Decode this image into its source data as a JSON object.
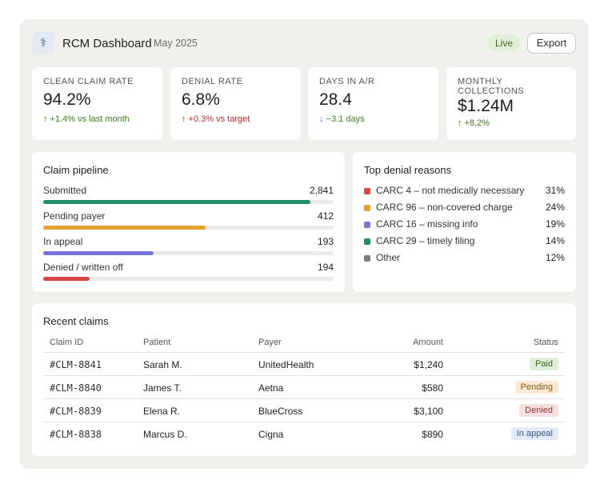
{
  "header": {
    "logo_icon": "⚕",
    "title": "RCM Dashboard",
    "period": "May 2025",
    "live_label": "Live",
    "export_label": "Export"
  },
  "kpis": [
    {
      "label": "CLEAN CLAIM RATE",
      "value": "94.2%",
      "delta": "↑ +1.4% vs last month",
      "tone": "good"
    },
    {
      "label": "DENIAL RATE",
      "value": "6.8%",
      "delta": "↑ +0.3% vs target",
      "tone": "bad"
    },
    {
      "label": "DAYS IN A/R",
      "value": "28.4",
      "delta": "↓ −3.1 days",
      "tone": "good"
    },
    {
      "label": "MONTHLY COLLECTIONS",
      "value": "$1.24M",
      "delta": "↑ +8.2%",
      "tone": "good"
    }
  ],
  "pipeline": {
    "title": "Claim pipeline",
    "rows": [
      {
        "label": "Submitted",
        "count": "2,841",
        "fraction": 0.92,
        "color": "#1f8f6a"
      },
      {
        "label": "Pending payer",
        "count": "412",
        "fraction": 0.56,
        "color": "#e8a034"
      },
      {
        "label": "In appeal",
        "count": "193",
        "fraction": 0.38,
        "color": "#7b73d6"
      },
      {
        "label": "Denied / written off",
        "count": "194",
        "fraction": 0.16,
        "color": "#d94545"
      }
    ]
  },
  "denials": {
    "title": "Top denial reasons",
    "rows": [
      {
        "label": "CARC 4 – not medically necessary",
        "pct": "31%",
        "color": "#d94545"
      },
      {
        "label": "CARC 96 – non-covered charge",
        "pct": "24%",
        "color": "#e8a034"
      },
      {
        "label": "CARC 16 – missing info",
        "pct": "19%",
        "color": "#7b73d6"
      },
      {
        "label": "CARC 29 – timely filing",
        "pct": "14%",
        "color": "#1f8f6a"
      },
      {
        "label": "Other",
        "pct": "12%",
        "color": "#7d7d78"
      }
    ]
  },
  "claims": {
    "title": "Recent claims",
    "columns": {
      "id": "Claim ID",
      "patient": "Patient",
      "payer": "Payer",
      "amount": "Amount",
      "status": "Status"
    },
    "rows": [
      {
        "id": "#CLM-8841",
        "patient": "Sarah M.",
        "payer": "UnitedHealth",
        "amount": "$1,240",
        "status": "Paid",
        "status_bg": "#e1efd9",
        "status_fg": "#3c6b22"
      },
      {
        "id": "#CLM-8840",
        "patient": "James T.",
        "payer": "Aetna",
        "amount": "$580",
        "status": "Pending",
        "status_bg": "#fbead3",
        "status_fg": "#8a5a12"
      },
      {
        "id": "#CLM-8839",
        "patient": "Elena R.",
        "payer": "BlueCross",
        "amount": "$3,100",
        "status": "Denied",
        "status_bg": "#f8e0e0",
        "status_fg": "#a12d2d"
      },
      {
        "id": "#CLM-8838",
        "patient": "Marcus D.",
        "payer": "Cigna",
        "amount": "$890",
        "status": "In appeal",
        "status_bg": "#e2ebf7",
        "status_fg": "#2f5a93"
      }
    ]
  }
}
